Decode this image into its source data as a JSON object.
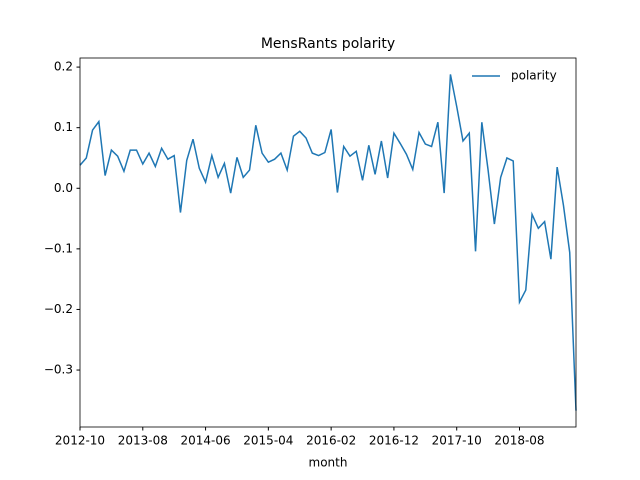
{
  "chart_data": {
    "type": "line",
    "title": "MensRants polarity",
    "xlabel": "month",
    "legend": "upper right",
    "grid": false,
    "x": [
      "2012-10",
      "2012-11",
      "2012-12",
      "2013-01",
      "2013-02",
      "2013-03",
      "2013-04",
      "2013-05",
      "2013-06",
      "2013-07",
      "2013-08",
      "2013-09",
      "2013-10",
      "2013-11",
      "2013-12",
      "2014-01",
      "2014-02",
      "2014-03",
      "2014-04",
      "2014-05",
      "2014-06",
      "2014-07",
      "2014-08",
      "2014-09",
      "2014-10",
      "2014-11",
      "2014-12",
      "2015-01",
      "2015-02",
      "2015-03",
      "2015-04",
      "2015-05",
      "2015-06",
      "2015-07",
      "2015-08",
      "2015-09",
      "2015-10",
      "2015-11",
      "2015-12",
      "2016-01",
      "2016-02",
      "2016-03",
      "2016-04",
      "2016-05",
      "2016-06",
      "2016-07",
      "2016-08",
      "2016-09",
      "2016-10",
      "2016-11",
      "2016-12",
      "2017-01",
      "2017-02",
      "2017-03",
      "2017-04",
      "2017-05",
      "2017-06",
      "2017-07",
      "2017-08",
      "2017-09",
      "2017-10",
      "2017-11",
      "2017-12",
      "2018-01",
      "2018-02",
      "2018-03",
      "2018-04",
      "2018-05",
      "2018-06",
      "2018-07",
      "2018-08",
      "2018-09",
      "2018-10",
      "2018-11",
      "2018-12",
      "2019-01",
      "2019-02",
      "2019-03",
      "2019-04",
      "2019-05"
    ],
    "series": [
      {
        "name": "polarity",
        "color": "#1f77b4",
        "values": [
          0.038,
          0.05,
          0.096,
          0.11,
          0.021,
          0.063,
          0.053,
          0.028,
          0.063,
          0.063,
          0.04,
          0.058,
          0.036,
          0.066,
          0.048,
          0.054,
          -0.04,
          0.046,
          0.081,
          0.033,
          0.01,
          0.054,
          0.018,
          0.041,
          -0.008,
          0.051,
          0.018,
          0.03,
          0.104,
          0.058,
          0.043,
          0.048,
          0.058,
          0.03,
          0.086,
          0.094,
          0.083,
          0.058,
          0.054,
          0.059,
          0.097,
          -0.007,
          0.069,
          0.053,
          0.061,
          0.013,
          0.071,
          0.023,
          0.078,
          0.017,
          0.091,
          0.074,
          0.056,
          0.031,
          0.092,
          0.073,
          0.069,
          0.109,
          -0.008,
          0.188,
          0.135,
          0.078,
          0.091,
          -0.104,
          0.109,
          0.03,
          -0.059,
          0.018,
          0.05,
          0.045,
          -0.188,
          -0.168,
          -0.043,
          -0.066,
          -0.055,
          -0.117,
          0.035,
          -0.028,
          -0.106,
          -0.367
        ]
      }
    ],
    "xlim": [
      "2012-10",
      "2019-05"
    ],
    "xticks": [
      "2012-10",
      "2013-08",
      "2014-06",
      "2015-04",
      "2016-02",
      "2016-12",
      "2017-10",
      "2018-08"
    ],
    "ylim": [
      -0.394,
      0.215
    ],
    "yticks": [
      {
        "value": 0.2,
        "label": "0.2"
      },
      {
        "value": 0.1,
        "label": "0.1"
      },
      {
        "value": 0,
        "label": "0.0"
      },
      {
        "value": -0.1,
        "label": "−0.1"
      },
      {
        "value": -0.2,
        "label": "−0.2"
      },
      {
        "value": -0.3,
        "label": "−0.3"
      }
    ]
  }
}
